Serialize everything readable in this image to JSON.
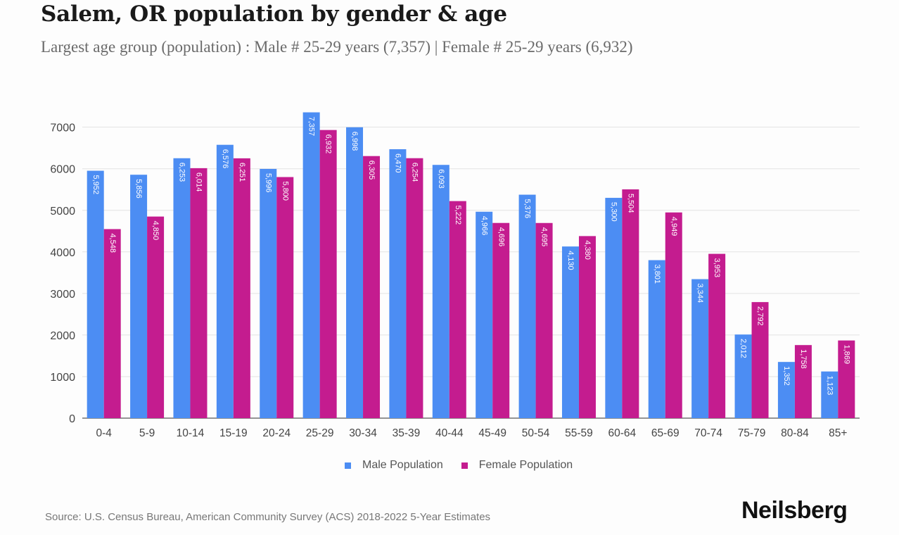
{
  "title": "Salem, OR population by gender & age",
  "subtitle": "Largest age group (population) : Male # 25-29 years (7,357) | Female # 25-29 years (6,932)",
  "source": "Source: U.S. Census Bureau, American Community Survey (ACS) 2018-2022 5-Year Estimates",
  "brand": "Neilsberg",
  "colors": {
    "male": "#4c8df3",
    "female": "#c41c8f",
    "grid": "#e3e3e3",
    "axis": "#555555"
  },
  "chart_data": {
    "type": "bar",
    "categories": [
      "0-4",
      "5-9",
      "10-14",
      "15-19",
      "20-24",
      "25-29",
      "30-34",
      "35-39",
      "40-44",
      "45-49",
      "50-54",
      "55-59",
      "60-64",
      "65-69",
      "70-74",
      "75-79",
      "80-84",
      "85+"
    ],
    "series": [
      {
        "name": "Male Population",
        "values": [
          5952,
          5856,
          6253,
          6576,
          5996,
          7357,
          6998,
          6470,
          6093,
          4966,
          5376,
          4130,
          5300,
          3801,
          3344,
          2012,
          1352,
          1123
        ],
        "labels": [
          "5,952",
          "5,856",
          "6,253",
          "6,576",
          "5,996",
          "7,357",
          "6,998",
          "6,470",
          "6,093",
          "4,966",
          "5,376",
          "4,130",
          "5,300",
          "3,801",
          "3,344",
          "2,012",
          "1,352",
          "1,123"
        ]
      },
      {
        "name": "Female Population",
        "values": [
          4548,
          4850,
          6014,
          6251,
          5800,
          6932,
          6305,
          6254,
          5222,
          4696,
          4695,
          4380,
          5504,
          4949,
          3953,
          2792,
          1758,
          1869
        ],
        "labels": [
          "4,548",
          "4,850",
          "6,014",
          "6,251",
          "5,800",
          "6,932",
          "6,305",
          "6,254",
          "5,222",
          "4,696",
          "4,695",
          "4,380",
          "5,504",
          "4,949",
          "3,953",
          "2,792",
          "1,758",
          "1,869"
        ]
      }
    ],
    "yticks": [
      "0",
      "1000",
      "2000",
      "3000",
      "4000",
      "5000",
      "6000",
      "7000"
    ],
    "ylim": [
      0,
      7350
    ],
    "grid": true,
    "legend_position": "bottom-center"
  }
}
